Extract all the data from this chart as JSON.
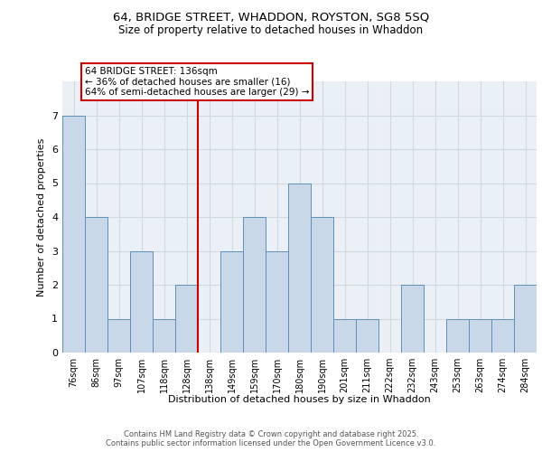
{
  "title_line1": "64, BRIDGE STREET, WHADDON, ROYSTON, SG8 5SQ",
  "title_line2": "Size of property relative to detached houses in Whaddon",
  "xlabel": "Distribution of detached houses by size in Whaddon",
  "ylabel": "Number of detached properties",
  "categories": [
    "76sqm",
    "86sqm",
    "97sqm",
    "107sqm",
    "118sqm",
    "128sqm",
    "138sqm",
    "149sqm",
    "159sqm",
    "170sqm",
    "180sqm",
    "190sqm",
    "201sqm",
    "211sqm",
    "222sqm",
    "232sqm",
    "243sqm",
    "253sqm",
    "263sqm",
    "274sqm",
    "284sqm"
  ],
  "values": [
    7,
    4,
    1,
    3,
    1,
    2,
    0,
    3,
    4,
    3,
    5,
    4,
    1,
    1,
    0,
    2,
    0,
    1,
    1,
    1,
    2
  ],
  "bar_color": "#c8d8e8",
  "bar_edge_color": "#6090b8",
  "red_line_index": 6,
  "annotation_text": "64 BRIDGE STREET: 136sqm\n← 36% of detached houses are smaller (16)\n64% of semi-detached houses are larger (29) →",
  "annotation_box_color": "white",
  "annotation_box_edge_color": "#cc0000",
  "red_line_color": "#cc0000",
  "grid_color": "#d0d8e0",
  "background_color": "#eaf0f6",
  "ylim": [
    0,
    8
  ],
  "yticks": [
    0,
    1,
    2,
    3,
    4,
    5,
    6,
    7
  ],
  "footer_line1": "Contains HM Land Registry data © Crown copyright and database right 2025.",
  "footer_line2": "Contains public sector information licensed under the Open Government Licence v3.0."
}
